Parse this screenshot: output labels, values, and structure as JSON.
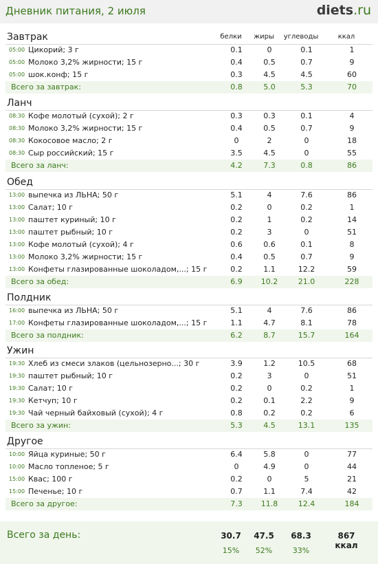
{
  "title": "Дневник питания, 2 июля",
  "logo": {
    "main": "diets",
    "suffix": ".ru"
  },
  "columns": {
    "protein": "белки",
    "fat": "жиры",
    "carbs": "углеводы",
    "kcal": "ккал"
  },
  "sections": [
    {
      "title": "Завтрак",
      "items": [
        {
          "time": "05:00",
          "name": "Цикорий; 3 г",
          "p": "0.1",
          "f": "0",
          "c": "0.1",
          "k": "1"
        },
        {
          "time": "05:00",
          "name": "Молоко 3,2% жирности; 15 г",
          "p": "0.4",
          "f": "0.5",
          "c": "0.7",
          "k": "9"
        },
        {
          "time": "05:00",
          "name": "шок.конф; 15 г",
          "p": "0.3",
          "f": "4.5",
          "c": "4.5",
          "k": "60"
        }
      ],
      "total": {
        "label": "Всего за завтрак:",
        "p": "0.8",
        "f": "5.0",
        "c": "5.3",
        "k": "70"
      }
    },
    {
      "title": "Ланч",
      "items": [
        {
          "time": "08:30",
          "name": "Кофе молотый (сухой); 2 г",
          "p": "0.3",
          "f": "0.3",
          "c": "0.1",
          "k": "4"
        },
        {
          "time": "08:30",
          "name": "Молоко 3,2% жирности; 15 г",
          "p": "0.4",
          "f": "0.5",
          "c": "0.7",
          "k": "9"
        },
        {
          "time": "08:30",
          "name": "Кокосовое масло; 2 г",
          "p": "0",
          "f": "2",
          "c": "0",
          "k": "18"
        },
        {
          "time": "08:30",
          "name": "Сыр российский; 15 г",
          "p": "3.5",
          "f": "4.5",
          "c": "0",
          "k": "55"
        }
      ],
      "total": {
        "label": "Всего за ланч:",
        "p": "4.2",
        "f": "7.3",
        "c": "0.8",
        "k": "86"
      }
    },
    {
      "title": "Обед",
      "items": [
        {
          "time": "13:00",
          "name": "выпечка из ЛЬНА; 50 г",
          "p": "5.1",
          "f": "4",
          "c": "7.6",
          "k": "86"
        },
        {
          "time": "13:00",
          "name": "Салат; 10 г",
          "p": "0.2",
          "f": "0",
          "c": "0.2",
          "k": "1"
        },
        {
          "time": "13:00",
          "name": "паштет куриный; 10 г",
          "p": "0.2",
          "f": "1",
          "c": "0.2",
          "k": "14"
        },
        {
          "time": "13:00",
          "name": "паштет рыбный; 10 г",
          "p": "0.2",
          "f": "3",
          "c": "0",
          "k": "51"
        },
        {
          "time": "13:00",
          "name": "Кофе молотый (сухой); 4 г",
          "p": "0.6",
          "f": "0.6",
          "c": "0.1",
          "k": "8"
        },
        {
          "time": "13:00",
          "name": "Молоко 3,2% жирности; 15 г",
          "p": "0.4",
          "f": "0.5",
          "c": "0.7",
          "k": "9"
        },
        {
          "time": "13:00",
          "name": "Конфеты глазированные шоколадом,...; 15 г",
          "p": "0.2",
          "f": "1.1",
          "c": "12.2",
          "k": "59"
        }
      ],
      "total": {
        "label": "Всего за обед:",
        "p": "6.9",
        "f": "10.2",
        "c": "21.0",
        "k": "228"
      }
    },
    {
      "title": "Полдник",
      "items": [
        {
          "time": "16:00",
          "name": "выпечка из ЛЬНА; 50 г",
          "p": "5.1",
          "f": "4",
          "c": "7.6",
          "k": "86"
        },
        {
          "time": "17:00",
          "name": "Конфеты глазированные шоколадом,...; 15 г",
          "p": "1.1",
          "f": "4.7",
          "c": "8.1",
          "k": "78"
        }
      ],
      "total": {
        "label": "Всего за полдник:",
        "p": "6.2",
        "f": "8.7",
        "c": "15.7",
        "k": "164"
      }
    },
    {
      "title": "Ужин",
      "items": [
        {
          "time": "19:30",
          "name": "Хлеб из смеси злаков (цельнозерно...; 30 г",
          "p": "3.9",
          "f": "1.2",
          "c": "10.5",
          "k": "68"
        },
        {
          "time": "19:30",
          "name": "паштет рыбный; 10 г",
          "p": "0.2",
          "f": "3",
          "c": "0",
          "k": "51"
        },
        {
          "time": "19:30",
          "name": "Салат; 10 г",
          "p": "0.2",
          "f": "0",
          "c": "0.2",
          "k": "1"
        },
        {
          "time": "19:30",
          "name": "Кетчуп; 10 г",
          "p": "0.2",
          "f": "0.1",
          "c": "2.2",
          "k": "9"
        },
        {
          "time": "19:30",
          "name": "Чай черный байховый (сухой); 4 г",
          "p": "0.8",
          "f": "0.2",
          "c": "0.2",
          "k": "6"
        }
      ],
      "total": {
        "label": "Всего за ужин:",
        "p": "5.3",
        "f": "4.5",
        "c": "13.1",
        "k": "135"
      }
    },
    {
      "title": "Другое",
      "items": [
        {
          "time": "10:00",
          "name": "Яйца куриные; 50 г",
          "p": "6.4",
          "f": "5.8",
          "c": "0",
          "k": "77"
        },
        {
          "time": "10:00",
          "name": "Масло топленое; 5 г",
          "p": "0",
          "f": "4.9",
          "c": "0",
          "k": "44"
        },
        {
          "time": "15:00",
          "name": "Квас; 100 г",
          "p": "0.2",
          "f": "0",
          "c": "5",
          "k": "21"
        },
        {
          "time": "15:00",
          "name": "Печенье; 10 г",
          "p": "0.7",
          "f": "1.1",
          "c": "7.4",
          "k": "42"
        }
      ],
      "total": {
        "label": "Всего за другое:",
        "p": "7.3",
        "f": "11.8",
        "c": "12.4",
        "k": "184"
      }
    }
  ],
  "day_total": {
    "label": "Всего за день:",
    "p": "30.7",
    "f": "47.5",
    "c": "68.3",
    "k": "867 ккал",
    "pct_p": "15%",
    "pct_f": "52%",
    "pct_c": "33%"
  },
  "colors": {
    "accent": "#3d7a1e",
    "total_bg": "#f0f6ec",
    "header_bg": "#f1f1f1"
  }
}
